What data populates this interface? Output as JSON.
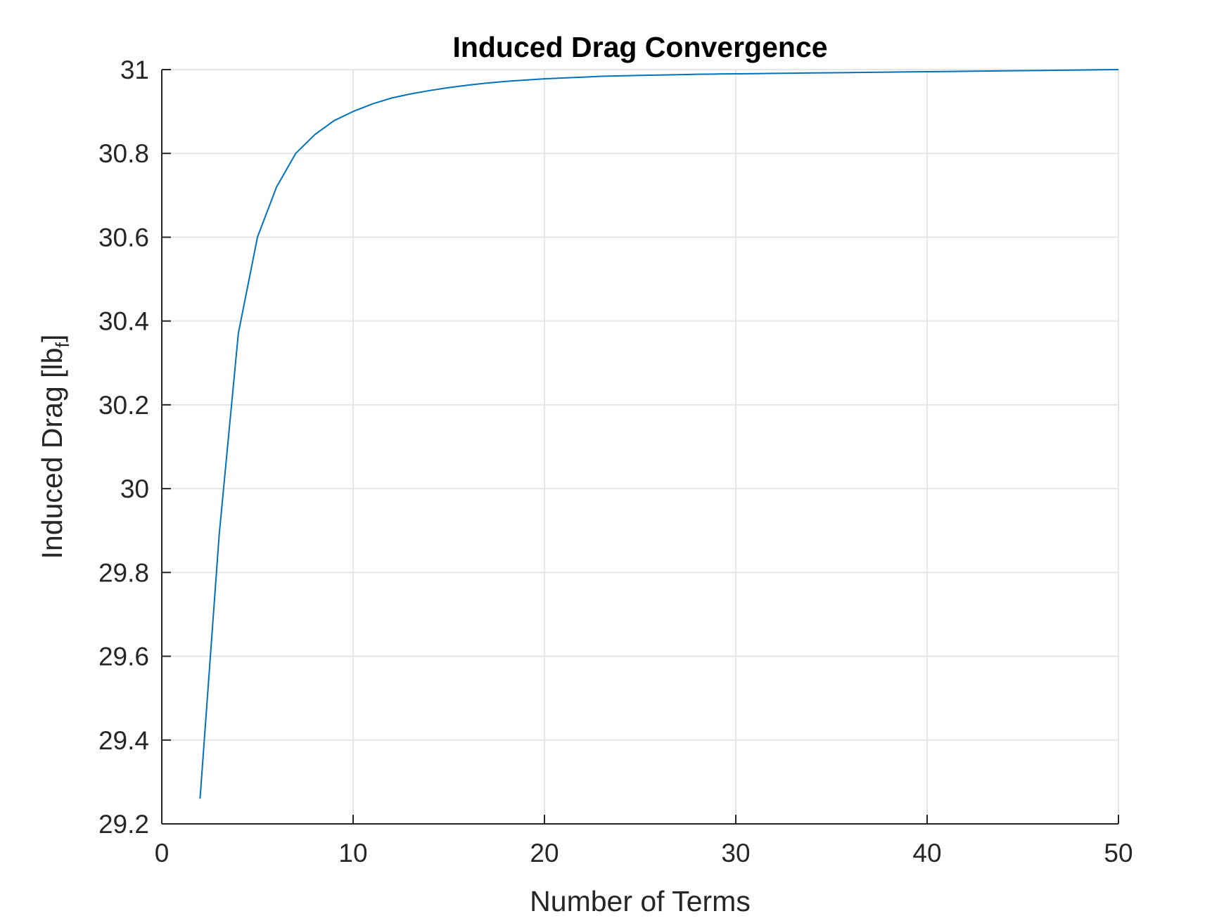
{
  "chart_data": {
    "type": "line",
    "title": "Induced Drag Convergence",
    "xlabel": "Number of Terms",
    "ylabel": {
      "main": "Induced Drag [lb",
      "subscript": "f",
      "close": "]"
    },
    "xlim": [
      0,
      50
    ],
    "ylim": [
      29.2,
      31
    ],
    "xticks": [
      0,
      10,
      20,
      30,
      40,
      50
    ],
    "xtick_labels": [
      "0",
      "10",
      "20",
      "30",
      "40",
      "50"
    ],
    "yticks": [
      29.2,
      29.4,
      29.6,
      29.8,
      30,
      30.2,
      30.4,
      30.6,
      30.8,
      31
    ],
    "ytick_labels": [
      "29.2",
      "29.4",
      "29.6",
      "29.8",
      "30",
      "30.2",
      "30.4",
      "30.6",
      "30.8",
      "31"
    ],
    "grid": true,
    "line_color": "#0072bd",
    "grid_color": "#e6e6e6",
    "axis_color": "#262626",
    "series": [
      {
        "x": [
          2,
          3,
          4,
          5,
          6,
          7,
          8,
          9,
          10,
          11,
          12,
          13,
          14,
          15,
          16,
          17,
          18,
          19,
          20,
          21,
          22,
          23,
          24,
          25,
          26,
          27,
          28,
          29,
          30,
          31,
          32,
          33,
          34,
          35,
          36,
          37,
          38,
          39,
          40,
          41,
          42,
          43,
          44,
          45,
          46,
          47,
          48,
          49,
          50
        ],
        "y": [
          29.26,
          29.89,
          30.37,
          30.6,
          30.72,
          30.8,
          30.845,
          30.878,
          30.9,
          30.918,
          30.932,
          30.942,
          30.95,
          30.957,
          30.963,
          30.968,
          30.972,
          30.975,
          30.978,
          30.98,
          30.982,
          30.984,
          30.985,
          30.986,
          30.987,
          30.988,
          30.989,
          30.9895,
          30.99,
          30.9905,
          30.991,
          30.9915,
          30.992,
          30.9925,
          30.993,
          30.9935,
          30.994,
          30.9945,
          30.995,
          30.9955,
          30.996,
          30.9965,
          30.997,
          30.9975,
          30.998,
          30.9985,
          30.999,
          30.9995,
          31.0
        ]
      }
    ]
  }
}
